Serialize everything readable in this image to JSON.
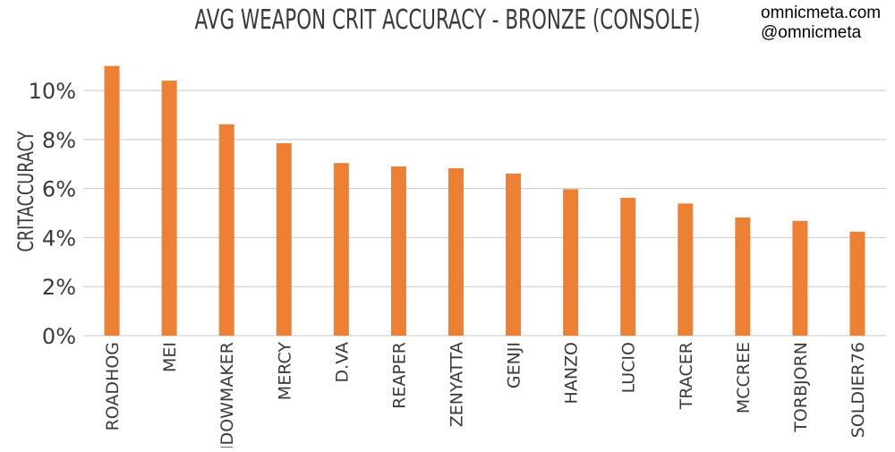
{
  "watermark": {
    "line1": "omnicmeta.com",
    "line2": "@omnicmeta"
  },
  "chart_data": {
    "type": "bar",
    "title": "AVG WEAPON CRIT ACCURACY - BRONZE (CONSOLE)",
    "xlabel": "",
    "ylabel": "CRITACCURACY",
    "categories": [
      "ROADHOG",
      "MEI",
      "WIDOWMAKER",
      "MERCY",
      "D.VA",
      "REAPER",
      "ZENYATTA",
      "GENJI",
      "HANZO",
      "LUCIO",
      "TRACER",
      "MCCREE",
      "TORBJORN",
      "SOLDIER76"
    ],
    "values": [
      0.11,
      0.104,
      0.0862,
      0.0785,
      0.0704,
      0.069,
      0.0683,
      0.0661,
      0.0597,
      0.0562,
      0.0539,
      0.0482,
      0.0468,
      0.0424
    ],
    "ylim": [
      0,
      0.115
    ],
    "yticks": [
      0,
      0.02,
      0.04,
      0.06,
      0.08,
      0.1
    ],
    "ytick_labels": [
      "0%",
      "2%",
      "4%",
      "6%",
      "8%",
      "10%"
    ],
    "grid": true,
    "bar_color": "#ee8033",
    "grid_color": "#c8c8c8",
    "text_color": "#3a3a3a"
  }
}
